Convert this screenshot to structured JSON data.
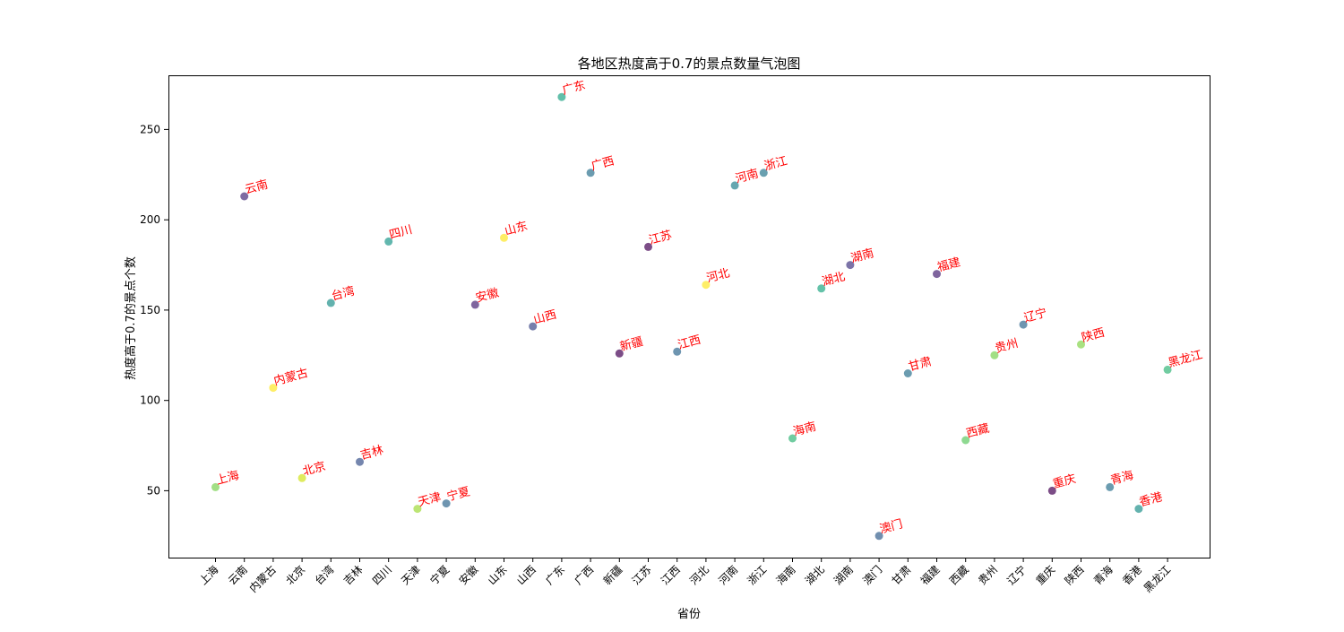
{
  "chart_data": {
    "type": "scatter",
    "title": "各地区热度高于0.7的景点数量气泡图",
    "xlabel": "省份",
    "ylabel": "热度高于0.7的景点个数",
    "ylim": [
      13,
      280
    ],
    "yticks": [
      50,
      100,
      150,
      200,
      250
    ],
    "grid": false,
    "legend": "none",
    "label_color": "#ff0000",
    "points": [
      {
        "category": "上海",
        "value": 52,
        "color": "#7ad151"
      },
      {
        "category": "云南",
        "value": 213,
        "color": "#472d7b"
      },
      {
        "category": "内蒙古",
        "value": 107,
        "color": "#fde725"
      },
      {
        "category": "北京",
        "value": 57,
        "color": "#d2e21b"
      },
      {
        "category": "台湾",
        "value": 154,
        "color": "#21918c"
      },
      {
        "category": "吉林",
        "value": 66,
        "color": "#3b528b"
      },
      {
        "category": "四川",
        "value": 188,
        "color": "#1f988b"
      },
      {
        "category": "天津",
        "value": 40,
        "color": "#a0da39"
      },
      {
        "category": "宁夏",
        "value": 43,
        "color": "#31688e"
      },
      {
        "category": "安徽",
        "value": 153,
        "color": "#482475"
      },
      {
        "category": "山东",
        "value": 190,
        "color": "#fde725"
      },
      {
        "category": "山西",
        "value": 141,
        "color": "#3e4989"
      },
      {
        "category": "广东",
        "value": 268,
        "color": "#20a486"
      },
      {
        "category": "广西",
        "value": 226,
        "color": "#2c728e"
      },
      {
        "category": "新疆",
        "value": 126,
        "color": "#440154"
      },
      {
        "category": "江苏",
        "value": 185,
        "color": "#440154"
      },
      {
        "category": "江西",
        "value": 127,
        "color": "#31688e"
      },
      {
        "category": "河北",
        "value": 164,
        "color": "#fde725"
      },
      {
        "category": "河南",
        "value": 219,
        "color": "#26828e"
      },
      {
        "category": "浙江",
        "value": 226,
        "color": "#2a788e"
      },
      {
        "category": "海南",
        "value": 79,
        "color": "#35b779"
      },
      {
        "category": "湖北",
        "value": 162,
        "color": "#22a884"
      },
      {
        "category": "湖南",
        "value": 175,
        "color": "#443983"
      },
      {
        "category": "澳门",
        "value": 25,
        "color": "#355f8d"
      },
      {
        "category": "甘肃",
        "value": 115,
        "color": "#2c728e"
      },
      {
        "category": "福建",
        "value": 170,
        "color": "#482475"
      },
      {
        "category": "西藏",
        "value": 78,
        "color": "#5ec962"
      },
      {
        "category": "贵州",
        "value": 125,
        "color": "#7ad151"
      },
      {
        "category": "辽宁",
        "value": 142,
        "color": "#31688e"
      },
      {
        "category": "重庆",
        "value": 50,
        "color": "#440154"
      },
      {
        "category": "陕西",
        "value": 131,
        "color": "#84d44b"
      },
      {
        "category": "青海",
        "value": 52,
        "color": "#2c728e"
      },
      {
        "category": "香港",
        "value": 40,
        "color": "#21918c"
      },
      {
        "category": "黑龙江",
        "value": 117,
        "color": "#35b779"
      }
    ]
  }
}
